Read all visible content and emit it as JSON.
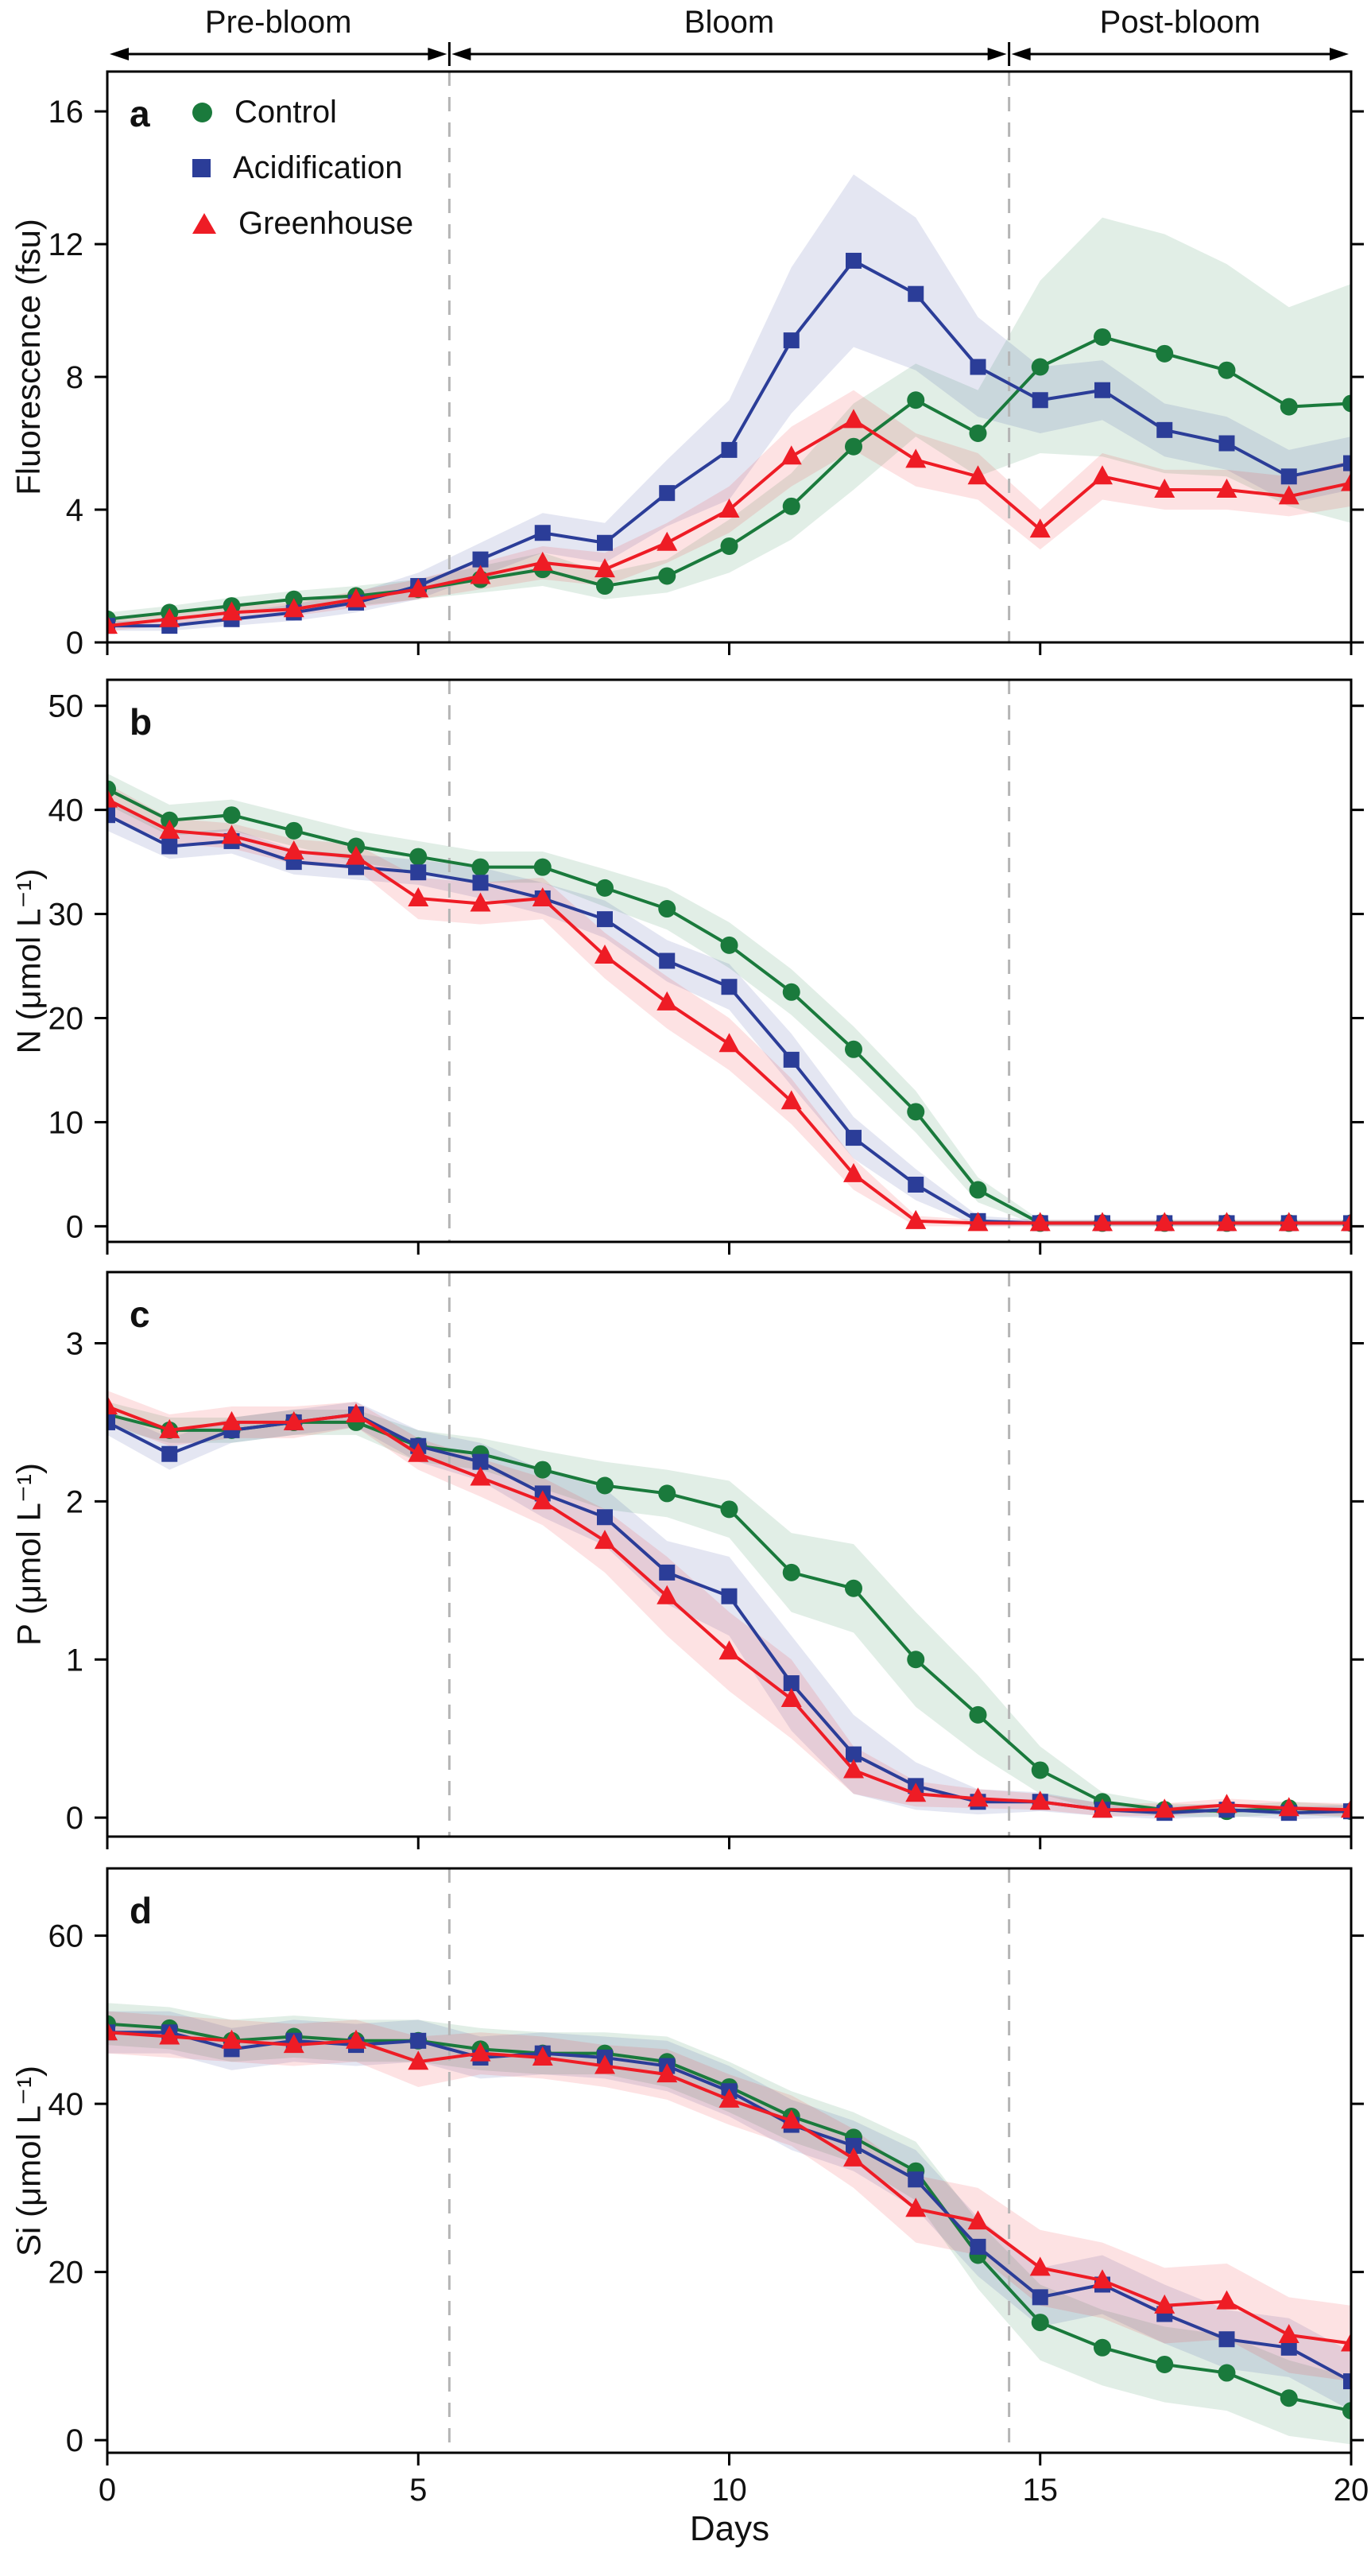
{
  "figure": {
    "xlabel": "Days",
    "x_ticks": [
      0,
      5,
      10,
      15,
      20
    ],
    "x_range": [
      0,
      20
    ],
    "phases": {
      "labels": [
        "Pre-bloom",
        "Bloom",
        "Post-bloom"
      ],
      "boundaries": [
        5.5,
        14.5
      ]
    },
    "legend": [
      {
        "label": "Control",
        "marker": "circle",
        "color": "#1a7a3c"
      },
      {
        "label": "Acidification",
        "marker": "square",
        "color": "#2b3d98"
      },
      {
        "label": "Greenhouse",
        "marker": "triangle",
        "color": "#ee1c25"
      }
    ],
    "band_opacity": 0.13,
    "dashed_line_color": "#b5b5b5"
  },
  "chart_data": [
    {
      "panel": "a",
      "type": "line",
      "ylabel": "Fluorescence (fsu)",
      "ylim": [
        0,
        17.2
      ],
      "yticks": [
        0,
        4,
        8,
        12,
        16
      ],
      "x": [
        0,
        1,
        2,
        3,
        4,
        5,
        6,
        7,
        8,
        9,
        10,
        11,
        12,
        13,
        14,
        15,
        16,
        17,
        18,
        19,
        20
      ],
      "series": [
        {
          "name": "Control",
          "values": [
            0.7,
            0.9,
            1.1,
            1.3,
            1.4,
            1.6,
            1.9,
            2.2,
            1.7,
            2.0,
            2.9,
            4.1,
            5.9,
            7.3,
            6.3,
            8.3,
            9.2,
            8.7,
            8.2,
            7.1,
            7.2
          ],
          "band": [
            0.2,
            0.2,
            0.25,
            0.25,
            0.3,
            0.3,
            0.4,
            0.5,
            0.4,
            0.5,
            0.8,
            1.0,
            1.3,
            1.1,
            1.3,
            2.6,
            3.6,
            3.6,
            3.2,
            3.0,
            3.6
          ]
        },
        {
          "name": "Acidification",
          "values": [
            0.5,
            0.5,
            0.7,
            0.9,
            1.2,
            1.7,
            2.5,
            3.3,
            3.0,
            4.5,
            5.8,
            9.1,
            11.5,
            10.5,
            8.3,
            7.3,
            7.6,
            6.4,
            6.0,
            5.0,
            5.4
          ],
          "band": [
            0.15,
            0.15,
            0.2,
            0.25,
            0.3,
            0.4,
            0.5,
            0.6,
            0.6,
            1.0,
            1.5,
            2.2,
            2.6,
            2.3,
            1.5,
            1.0,
            0.9,
            0.8,
            0.8,
            0.8,
            0.8
          ]
        },
        {
          "name": "Greenhouse",
          "values": [
            0.5,
            0.7,
            0.9,
            1.0,
            1.3,
            1.6,
            2.0,
            2.4,
            2.2,
            3.0,
            4.0,
            5.6,
            6.7,
            5.5,
            5.0,
            3.4,
            5.0,
            4.6,
            4.6,
            4.4,
            4.8
          ],
          "band": [
            0.15,
            0.2,
            0.2,
            0.2,
            0.25,
            0.3,
            0.4,
            0.5,
            0.5,
            0.6,
            0.7,
            0.9,
            0.9,
            0.8,
            0.7,
            0.6,
            0.7,
            0.6,
            0.6,
            0.6,
            0.7
          ]
        }
      ]
    },
    {
      "panel": "b",
      "type": "line",
      "ylabel": "N (μmol L⁻¹)",
      "ylim": [
        -1.5,
        52.5
      ],
      "yticks": [
        0,
        10,
        20,
        30,
        40,
        50
      ],
      "x": [
        0,
        1,
        2,
        3,
        4,
        5,
        6,
        7,
        8,
        9,
        10,
        11,
        12,
        13,
        14,
        15,
        16,
        17,
        18,
        19,
        20
      ],
      "series": [
        {
          "name": "Control",
          "values": [
            42,
            39,
            39.5,
            38,
            36.5,
            35.5,
            34.5,
            34.5,
            32.5,
            30.5,
            27,
            22.5,
            17,
            11,
            3.5,
            0.3,
            0.3,
            0.3,
            0.3,
            0.3,
            0.3
          ],
          "band": [
            1.5,
            1.5,
            1.5,
            1.5,
            1.5,
            1.5,
            1.5,
            1.5,
            1.8,
            2.0,
            2.2,
            2.2,
            2.2,
            2.0,
            1.2,
            0.3,
            0.3,
            0.3,
            0.3,
            0.3,
            0.3
          ]
        },
        {
          "name": "Acidification",
          "values": [
            39.5,
            36.5,
            37,
            35,
            34.5,
            34,
            33,
            31.5,
            29.5,
            25.5,
            23,
            16,
            8.5,
            4,
            0.5,
            0.3,
            0.3,
            0.3,
            0.3,
            0.3,
            0.3
          ],
          "band": [
            1.5,
            1.2,
            1.2,
            1.2,
            1.2,
            1.2,
            1.5,
            1.5,
            1.8,
            2.0,
            2.2,
            2.5,
            2.0,
            1.5,
            0.5,
            0.3,
            0.3,
            0.3,
            0.3,
            0.3,
            0.3
          ]
        },
        {
          "name": "Greenhouse",
          "values": [
            41,
            38,
            37.5,
            36,
            35.5,
            31.5,
            31,
            31.5,
            26,
            21.5,
            17.5,
            12,
            5,
            0.5,
            0.3,
            0.3,
            0.3,
            0.3,
            0.3,
            0.3,
            0.3
          ],
          "band": [
            1.5,
            1.2,
            1.2,
            1.2,
            1.2,
            2.0,
            2.0,
            2.0,
            2.2,
            2.5,
            2.5,
            2.2,
            1.5,
            0.5,
            0.3,
            0.3,
            0.3,
            0.3,
            0.3,
            0.3,
            0.3
          ]
        }
      ]
    },
    {
      "panel": "c",
      "type": "line",
      "ylabel": "P (μmol L⁻¹)",
      "ylim": [
        -0.12,
        3.45
      ],
      "yticks": [
        0,
        1,
        2,
        3
      ],
      "x": [
        0,
        1,
        2,
        3,
        4,
        5,
        6,
        7,
        8,
        9,
        10,
        11,
        12,
        13,
        14,
        15,
        16,
        17,
        18,
        19,
        20
      ],
      "series": [
        {
          "name": "Control",
          "values": [
            2.55,
            2.45,
            2.45,
            2.5,
            2.5,
            2.35,
            2.3,
            2.2,
            2.1,
            2.05,
            1.95,
            1.55,
            1.45,
            1.0,
            0.65,
            0.3,
            0.1,
            0.05,
            0.04,
            0.06,
            0.04
          ],
          "band": [
            0.08,
            0.08,
            0.08,
            0.08,
            0.08,
            0.1,
            0.1,
            0.12,
            0.15,
            0.15,
            0.18,
            0.25,
            0.28,
            0.3,
            0.25,
            0.15,
            0.06,
            0.04,
            0.04,
            0.04,
            0.04
          ]
        },
        {
          "name": "Acidification",
          "values": [
            2.5,
            2.3,
            2.45,
            2.5,
            2.55,
            2.35,
            2.25,
            2.05,
            1.9,
            1.55,
            1.4,
            0.85,
            0.4,
            0.2,
            0.1,
            0.1,
            0.05,
            0.03,
            0.05,
            0.03,
            0.04
          ],
          "band": [
            0.08,
            0.1,
            0.08,
            0.08,
            0.08,
            0.1,
            0.12,
            0.15,
            0.18,
            0.2,
            0.25,
            0.3,
            0.25,
            0.15,
            0.08,
            0.06,
            0.04,
            0.04,
            0.04,
            0.04,
            0.04
          ]
        },
        {
          "name": "Greenhouse",
          "values": [
            2.6,
            2.45,
            2.5,
            2.5,
            2.55,
            2.3,
            2.15,
            2.0,
            1.75,
            1.4,
            1.05,
            0.75,
            0.3,
            0.15,
            0.12,
            0.1,
            0.05,
            0.05,
            0.08,
            0.06,
            0.05
          ],
          "band": [
            0.1,
            0.1,
            0.1,
            0.1,
            0.08,
            0.1,
            0.12,
            0.15,
            0.2,
            0.25,
            0.25,
            0.25,
            0.15,
            0.08,
            0.06,
            0.05,
            0.04,
            0.04,
            0.04,
            0.04,
            0.04
          ]
        }
      ]
    },
    {
      "panel": "d",
      "type": "line",
      "ylabel": "Si (μmol L⁻¹)",
      "ylim": [
        -1.5,
        68
      ],
      "yticks": [
        0,
        20,
        40,
        60
      ],
      "x": [
        0,
        1,
        2,
        3,
        4,
        5,
        6,
        7,
        8,
        9,
        10,
        11,
        12,
        13,
        14,
        15,
        16,
        17,
        18,
        19,
        20
      ],
      "series": [
        {
          "name": "Control",
          "values": [
            49.5,
            49,
            47.5,
            48,
            47.5,
            47.5,
            46.5,
            46,
            46,
            45,
            42,
            38.5,
            36,
            32,
            22,
            14,
            11,
            9,
            8,
            5,
            3.5
          ],
          "band": [
            2.5,
            2.5,
            2.5,
            2.5,
            2.5,
            2.5,
            2.5,
            2.5,
            2.5,
            3,
            3,
            3,
            3,
            3.5,
            4,
            4.5,
            4.5,
            4.5,
            4.5,
            4.5,
            4
          ]
        },
        {
          "name": "Acidification",
          "values": [
            48.5,
            48.5,
            46.5,
            47.5,
            47,
            47.5,
            45.5,
            46,
            45.5,
            44.5,
            41.5,
            37.5,
            35,
            31,
            23,
            17,
            18.5,
            15,
            12,
            11,
            7
          ],
          "band": [
            2.5,
            2.5,
            2.5,
            2.5,
            2.5,
            2.5,
            2.5,
            2.5,
            2.5,
            3,
            3,
            3,
            3,
            3.5,
            3.5,
            3.5,
            3.5,
            3.5,
            3.5,
            3.5,
            3.5
          ]
        },
        {
          "name": "Greenhouse",
          "values": [
            48.5,
            48,
            47.5,
            47,
            47.5,
            45,
            46,
            45.5,
            44.5,
            43.5,
            40.5,
            38,
            33.5,
            27.5,
            26,
            20.5,
            19,
            16,
            16.5,
            12.5,
            11.5
          ],
          "band": [
            2.5,
            2.5,
            2.5,
            2.5,
            2.5,
            3,
            2.5,
            2.5,
            2.5,
            3,
            3,
            3,
            3.5,
            4,
            4,
            4.5,
            4.5,
            4.5,
            4.5,
            4.5,
            4.5
          ]
        }
      ]
    }
  ]
}
